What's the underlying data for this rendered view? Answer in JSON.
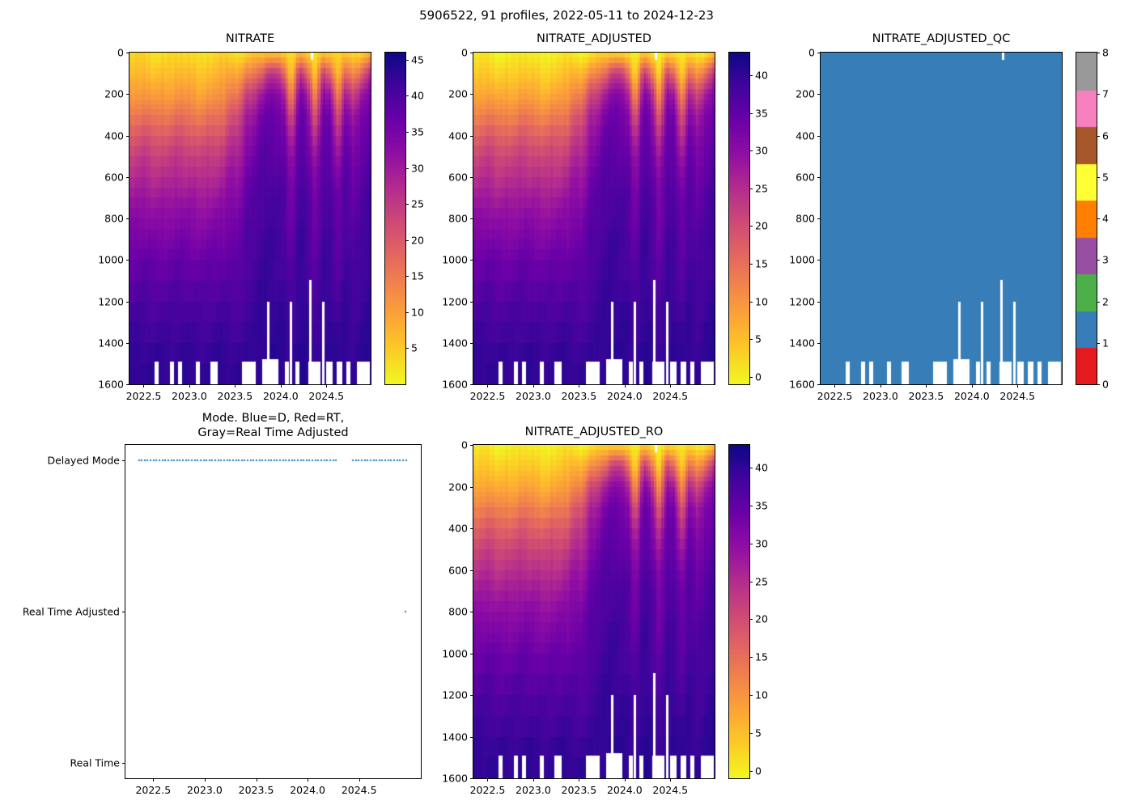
{
  "figure_title": "5906522, 91 profiles, 2022-05-11 to 2024-12-23",
  "colors": {
    "plasma_stops": [
      "#0d0887",
      "#41049d",
      "#6a00a8",
      "#8f0da4",
      "#b12a90",
      "#cc4778",
      "#e16462",
      "#f2844b",
      "#fca636",
      "#fcce25",
      "#f0f921"
    ],
    "qc_palette": [
      "#e41a1c",
      "#377eb8",
      "#4daf4a",
      "#984ea3",
      "#ff7f00",
      "#ffff33",
      "#a65628",
      "#f781bf",
      "#999999"
    ],
    "qc_fill": "#377eb8",
    "mode_marker": "#1f77b4",
    "axis_color": "#000000"
  },
  "shared_grid": {
    "x": [
      2022.36,
      2022.44,
      2022.53,
      2022.61,
      2022.7,
      2022.78,
      2022.86,
      2022.95,
      2023.03,
      2023.12,
      2023.2,
      2023.28,
      2023.37,
      2023.45,
      2023.54,
      2023.62,
      2023.7,
      2023.79,
      2023.87,
      2023.96,
      2024.04,
      2024.12,
      2024.21,
      2024.29,
      2024.38,
      2024.46,
      2024.54,
      2024.63,
      2024.71,
      2024.8,
      2024.88,
      2024.97
    ],
    "depths": [
      0,
      100,
      200,
      300,
      400,
      500,
      600,
      700,
      800,
      900,
      1000,
      1100,
      1200,
      1300,
      1400,
      1500,
      1600
    ],
    "values": [
      [
        3,
        6,
        10,
        15,
        20,
        24,
        27,
        30,
        33,
        35,
        37,
        38,
        40,
        41,
        42,
        43,
        43
      ],
      [
        3,
        6,
        10,
        15,
        20,
        24,
        27,
        30,
        33,
        35,
        37,
        38,
        40,
        41,
        42,
        43,
        43
      ],
      [
        3,
        7,
        11,
        16,
        21,
        25,
        28,
        31,
        33,
        35,
        37,
        39,
        40,
        41,
        42,
        43,
        43
      ],
      [
        3,
        6,
        10,
        15,
        20,
        24,
        27,
        30,
        33,
        35,
        37,
        38,
        40,
        41,
        42,
        43,
        43
      ],
      [
        3,
        7,
        11,
        16,
        21,
        25,
        28,
        31,
        33,
        35,
        37,
        39,
        40,
        41,
        42,
        43,
        43
      ],
      [
        3,
        6,
        10,
        15,
        20,
        24,
        27,
        30,
        33,
        35,
        37,
        38,
        40,
        41,
        42,
        43,
        43
      ],
      [
        3,
        7,
        11,
        16,
        21,
        25,
        28,
        31,
        33,
        35,
        37,
        39,
        40,
        41,
        42,
        43,
        43
      ],
      [
        3,
        6,
        10,
        15,
        20,
        24,
        27,
        30,
        33,
        35,
        37,
        38,
        40,
        41,
        42,
        43,
        43
      ],
      [
        3,
        7,
        11,
        16,
        21,
        25,
        28,
        31,
        33,
        35,
        37,
        39,
        40,
        41,
        42,
        43,
        43
      ],
      [
        3,
        6,
        10,
        15,
        20,
        24,
        27,
        30,
        33,
        35,
        37,
        38,
        40,
        41,
        42,
        43,
        43
      ],
      [
        3,
        7,
        11,
        16,
        21,
        25,
        28,
        31,
        33,
        35,
        37,
        39,
        40,
        41,
        42,
        43,
        43
      ],
      [
        3,
        6,
        10,
        15,
        20,
        24,
        27,
        30,
        33,
        35,
        37,
        38,
        40,
        41,
        42,
        43,
        43
      ],
      [
        3,
        7,
        11,
        16,
        21,
        25,
        28,
        31,
        33,
        35,
        37,
        39,
        40,
        41,
        42,
        43,
        43
      ],
      [
        3,
        10,
        16,
        22,
        26,
        29,
        32,
        34,
        36,
        37,
        38,
        39,
        40,
        41,
        42,
        43,
        43
      ],
      [
        3,
        10,
        16,
        22,
        26,
        29,
        32,
        34,
        36,
        37,
        38,
        39,
        40,
        41,
        42,
        43,
        43
      ],
      [
        4,
        14,
        24,
        30,
        33,
        35,
        37,
        38,
        39,
        40,
        40,
        41,
        41,
        42,
        42,
        43,
        43
      ],
      [
        4,
        14,
        24,
        30,
        33,
        35,
        37,
        38,
        39,
        40,
        40,
        41,
        41,
        42,
        42,
        43,
        43
      ],
      [
        4,
        18,
        30,
        35,
        37,
        38,
        39,
        40,
        40,
        41,
        41,
        42,
        42,
        43,
        43,
        43,
        44
      ],
      [
        6,
        26,
        34,
        37,
        38,
        39,
        40,
        41,
        41,
        42,
        42,
        42,
        43,
        43,
        43,
        44,
        44
      ],
      [
        6,
        26,
        34,
        37,
        38,
        39,
        40,
        41,
        41,
        42,
        42,
        42,
        43,
        43,
        43,
        44,
        44
      ],
      [
        4,
        18,
        30,
        35,
        37,
        38,
        39,
        40,
        40,
        41,
        41,
        42,
        42,
        43,
        43,
        43,
        44
      ],
      [
        2,
        4,
        12,
        20,
        26,
        30,
        33,
        35,
        36,
        37,
        38,
        39,
        40,
        41,
        42,
        43,
        43
      ],
      [
        6,
        26,
        34,
        37,
        38,
        39,
        40,
        41,
        41,
        42,
        42,
        42,
        43,
        43,
        43,
        44,
        44
      ],
      [
        4,
        18,
        30,
        35,
        37,
        38,
        39,
        40,
        40,
        41,
        41,
        42,
        42,
        43,
        43,
        43,
        44
      ],
      [
        2,
        4,
        12,
        20,
        26,
        30,
        33,
        35,
        36,
        37,
        38,
        39,
        40,
        41,
        42,
        43,
        43
      ],
      [
        6,
        26,
        34,
        37,
        38,
        39,
        40,
        41,
        41,
        42,
        42,
        42,
        43,
        43,
        43,
        44,
        44
      ],
      [
        4,
        18,
        30,
        35,
        37,
        38,
        39,
        40,
        40,
        41,
        41,
        42,
        42,
        43,
        43,
        43,
        44
      ],
      [
        2,
        4,
        12,
        20,
        26,
        30,
        33,
        35,
        36,
        37,
        38,
        39,
        40,
        41,
        42,
        43,
        43
      ],
      [
        4,
        18,
        30,
        35,
        37,
        38,
        39,
        40,
        40,
        41,
        41,
        42,
        42,
        43,
        43,
        43,
        44
      ],
      [
        4,
        14,
        24,
        30,
        33,
        35,
        37,
        38,
        39,
        40,
        40,
        41,
        41,
        42,
        42,
        43,
        43
      ],
      [
        4,
        18,
        30,
        35,
        37,
        38,
        39,
        40,
        40,
        41,
        41,
        42,
        42,
        43,
        43,
        43,
        44
      ],
      [
        6,
        26,
        34,
        37,
        38,
        39,
        40,
        41,
        41,
        42,
        42,
        42,
        43,
        43,
        43,
        44,
        44
      ]
    ],
    "gaps": [
      [
        2022.62,
        2022.66,
        1490,
        1600
      ],
      [
        2022.79,
        2022.83,
        1490,
        1600
      ],
      [
        2022.88,
        2022.92,
        1490,
        1600
      ],
      [
        2023.07,
        2023.11,
        1490,
        1600
      ],
      [
        2023.23,
        2023.31,
        1490,
        1600
      ],
      [
        2023.58,
        2023.73,
        1490,
        1600
      ],
      [
        2023.8,
        2023.98,
        1480,
        1600
      ],
      [
        2024.05,
        2024.09,
        1490,
        1600
      ],
      [
        2024.16,
        2024.2,
        1490,
        1600
      ],
      [
        2024.3,
        2024.43,
        1490,
        1600
      ],
      [
        2024.5,
        2024.57,
        1490,
        1600
      ],
      [
        2024.61,
        2024.67,
        1490,
        1600
      ],
      [
        2024.72,
        2024.76,
        1490,
        1600
      ],
      [
        2024.83,
        2024.97,
        1490,
        1600
      ],
      [
        2023.855,
        2023.885,
        1200,
        1600
      ],
      [
        2024.1,
        2024.13,
        1200,
        1600
      ],
      [
        2024.315,
        2024.345,
        1095,
        1600
      ],
      [
        2024.45,
        2024.48,
        1200,
        1600
      ],
      [
        2024.33,
        2024.36,
        0,
        35
      ]
    ]
  },
  "chart_data": [
    {
      "type": "heatmap",
      "title": "NITRATE",
      "x_range": [
        2022.345,
        2024.985
      ],
      "y_range": [
        0,
        1600
      ],
      "x_ticks": [
        "2022.5",
        "2023.0",
        "2023.5",
        "2024.0",
        "2024.5"
      ],
      "y_ticks": [
        0,
        200,
        400,
        600,
        800,
        1000,
        1200,
        1400,
        1600
      ],
      "vmin": 0,
      "vmax": 46,
      "value_offset": 0,
      "colorbar_ticks": [
        5,
        10,
        15,
        20,
        25,
        30,
        35,
        40,
        45
      ]
    },
    {
      "type": "heatmap",
      "title": "NITRATE_ADJUSTED",
      "x_range": [
        2022.345,
        2024.985
      ],
      "y_range": [
        0,
        1600
      ],
      "x_ticks": [
        "2022.5",
        "2023.0",
        "2023.5",
        "2024.0",
        "2024.5"
      ],
      "y_ticks": [
        0,
        200,
        400,
        600,
        800,
        1000,
        1200,
        1400,
        1600
      ],
      "vmin": -1,
      "vmax": 43,
      "value_offset": -3,
      "colorbar_ticks": [
        0,
        5,
        10,
        15,
        20,
        25,
        30,
        35,
        40
      ]
    },
    {
      "type": "heatmap_qc",
      "title": "NITRATE_ADJUSTED_QC",
      "x_range": [
        2022.345,
        2024.985
      ],
      "y_range": [
        0,
        1600
      ],
      "x_ticks": [
        "2022.5",
        "2023.0",
        "2023.5",
        "2024.0",
        "2024.5"
      ],
      "y_ticks": [
        0,
        200,
        400,
        600,
        800,
        1000,
        1200,
        1400,
        1600
      ],
      "qc_value": 1,
      "colorbar_ticks": [
        0,
        1,
        2,
        3,
        4,
        5,
        6,
        7,
        8
      ]
    },
    {
      "type": "scatter",
      "title_lines": [
        "Mode. Blue=D, Red=RT,",
        "Gray=Real Time Adjusted"
      ],
      "x_range": [
        2022.23,
        2025.1
      ],
      "x_ticks": [
        "2022.5",
        "2023.0",
        "2023.5",
        "2024.0",
        "2024.5"
      ],
      "categories": [
        "Delayed Mode",
        "Real Time Adjusted",
        "Real Time"
      ],
      "delayed_segments": [
        [
          2022.36,
          2024.28
        ],
        [
          2024.44,
          2024.97
        ]
      ],
      "point_step": 0.0286,
      "rta_points": [
        2024.95
      ]
    },
    {
      "type": "heatmap",
      "title": "NITRATE_ADJUSTED_RO",
      "x_range": [
        2022.345,
        2024.985
      ],
      "y_range": [
        0,
        1600
      ],
      "x_ticks": [
        "2022.5",
        "2023.0",
        "2023.5",
        "2024.0",
        "2024.5"
      ],
      "y_ticks": [
        0,
        200,
        400,
        600,
        800,
        1000,
        1200,
        1400,
        1600
      ],
      "vmin": -1,
      "vmax": 43,
      "value_offset": -3,
      "colorbar_ticks": [
        0,
        5,
        10,
        15,
        20,
        25,
        30,
        35,
        40
      ]
    }
  ]
}
